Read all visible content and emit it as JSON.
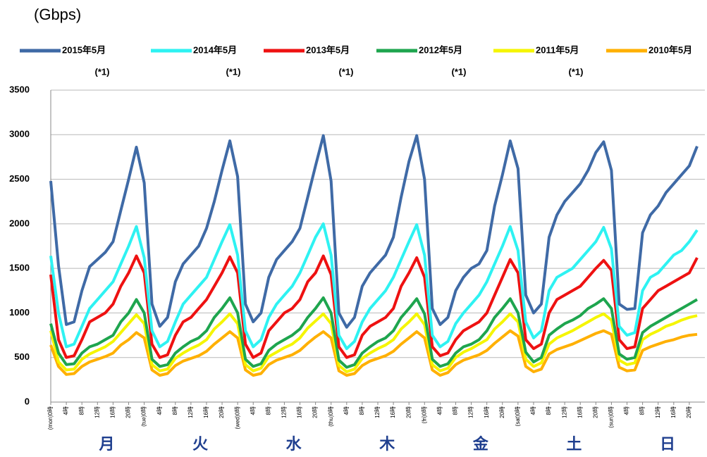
{
  "chart_data": {
    "type": "line",
    "title": "(Gbps)",
    "x": [
      0,
      2,
      4,
      6,
      8,
      10,
      12,
      14,
      16,
      18,
      20,
      22,
      24,
      26,
      28,
      30,
      32,
      34,
      36,
      38,
      40,
      42,
      44,
      46,
      48,
      50,
      52,
      54,
      56,
      58,
      60,
      62,
      64,
      66,
      68,
      70,
      72,
      74,
      76,
      78,
      80,
      82,
      84,
      86,
      88,
      90,
      92,
      94,
      96,
      98,
      100,
      102,
      104,
      106,
      108,
      110,
      112,
      114,
      116,
      118,
      120,
      122,
      124,
      126,
      128,
      130,
      132,
      134,
      136,
      138,
      140,
      142,
      144,
      146,
      148,
      150,
      152,
      154,
      156,
      158,
      160,
      162,
      164,
      166
    ],
    "xlim": [
      0,
      168
    ],
    "xticks": [
      {
        "value": 0,
        "label": "(mon)0時"
      },
      {
        "value": 4,
        "label": "4時"
      },
      {
        "value": 8,
        "label": "8時"
      },
      {
        "value": 12,
        "label": "12時"
      },
      {
        "value": 16,
        "label": "16時"
      },
      {
        "value": 20,
        "label": "20時"
      },
      {
        "value": 24,
        "label": "(tue)0時"
      },
      {
        "value": 28,
        "label": "4時"
      },
      {
        "value": 32,
        "label": "8時"
      },
      {
        "value": 36,
        "label": "12時"
      },
      {
        "value": 40,
        "label": "16時"
      },
      {
        "value": 44,
        "label": "20時"
      },
      {
        "value": 48,
        "label": "(wed)0時"
      },
      {
        "value": 52,
        "label": "4時"
      },
      {
        "value": 56,
        "label": "8時"
      },
      {
        "value": 60,
        "label": "12時"
      },
      {
        "value": 64,
        "label": "16時"
      },
      {
        "value": 68,
        "label": "20時"
      },
      {
        "value": 72,
        "label": "(thu)0時"
      },
      {
        "value": 76,
        "label": "4時"
      },
      {
        "value": 80,
        "label": "8時"
      },
      {
        "value": 84,
        "label": "12時"
      },
      {
        "value": 88,
        "label": "16時"
      },
      {
        "value": 92,
        "label": "20時"
      },
      {
        "value": 96,
        "label": "(fri)0時"
      },
      {
        "value": 100,
        "label": "4時"
      },
      {
        "value": 104,
        "label": "8時"
      },
      {
        "value": 108,
        "label": "12時"
      },
      {
        "value": 112,
        "label": "16時"
      },
      {
        "value": 116,
        "label": "20時"
      },
      {
        "value": 120,
        "label": "(sat)0時"
      },
      {
        "value": 124,
        "label": "4時"
      },
      {
        "value": 128,
        "label": "8時"
      },
      {
        "value": 132,
        "label": "12時"
      },
      {
        "value": 136,
        "label": "16時"
      },
      {
        "value": 140,
        "label": "20時"
      },
      {
        "value": 144,
        "label": "(sun)0時"
      },
      {
        "value": 148,
        "label": "4時"
      },
      {
        "value": 152,
        "label": "8時"
      },
      {
        "value": 156,
        "label": "12時"
      },
      {
        "value": 160,
        "label": "16時"
      },
      {
        "value": 164,
        "label": "20時"
      }
    ],
    "ylim": [
      0,
      3500
    ],
    "yticks": [
      0,
      500,
      1000,
      1500,
      2000,
      2500,
      3000,
      3500
    ],
    "grid": true,
    "day_labels": [
      "月",
      "火",
      "水",
      "木",
      "金",
      "土",
      "日"
    ],
    "annotations": [
      "(*1)",
      "(*1)",
      "(*1)",
      "(*1)",
      "(*1)"
    ],
    "series": [
      {
        "name": "2015年5月",
        "color": "#3f6aa6",
        "values": [
          2480,
          1530,
          870,
          900,
          1250,
          1520,
          1600,
          1680,
          1800,
          2150,
          2500,
          2860,
          2460,
          1100,
          850,
          950,
          1350,
          1550,
          1650,
          1750,
          1950,
          2250,
          2600,
          2930,
          2530,
          1100,
          900,
          1000,
          1400,
          1600,
          1700,
          1800,
          1950,
          2300,
          2650,
          2990,
          2480,
          1000,
          840,
          950,
          1300,
          1450,
          1550,
          1650,
          1850,
          2300,
          2700,
          2990,
          2500,
          1050,
          870,
          950,
          1250,
          1400,
          1500,
          1550,
          1700,
          2200,
          2550,
          2930,
          2620,
          1200,
          1000,
          1100,
          1850,
          2100,
          2250,
          2350,
          2450,
          2600,
          2800,
          2920,
          2600,
          1100,
          1040,
          1050,
          1900,
          2100,
          2200,
          2350,
          2450,
          2550,
          2650,
          2870
        ]
      },
      {
        "name": "2014年5月",
        "color": "#2ef2f2",
        "values": [
          1640,
          1000,
          620,
          650,
          850,
          1050,
          1150,
          1250,
          1350,
          1550,
          1750,
          1970,
          1620,
          800,
          620,
          680,
          900,
          1100,
          1200,
          1300,
          1400,
          1600,
          1800,
          1990,
          1650,
          800,
          620,
          700,
          950,
          1100,
          1200,
          1300,
          1450,
          1650,
          1850,
          2000,
          1650,
          750,
          600,
          680,
          900,
          1050,
          1150,
          1250,
          1400,
          1600,
          1800,
          1990,
          1650,
          750,
          620,
          680,
          880,
          1000,
          1100,
          1200,
          1350,
          1550,
          1750,
          1970,
          1700,
          900,
          720,
          800,
          1250,
          1400,
          1450,
          1500,
          1600,
          1700,
          1800,
          1960,
          1720,
          850,
          750,
          780,
          1250,
          1400,
          1450,
          1550,
          1650,
          1700,
          1800,
          1930
        ]
      },
      {
        "name": "2013年5月",
        "color": "#ee1111",
        "values": [
          1430,
          700,
          500,
          520,
          700,
          900,
          950,
          1000,
          1100,
          1300,
          1450,
          1640,
          1450,
          650,
          500,
          530,
          750,
          900,
          950,
          1050,
          1150,
          1300,
          1450,
          1630,
          1450,
          650,
          500,
          550,
          800,
          900,
          1000,
          1050,
          1150,
          1350,
          1450,
          1640,
          1430,
          620,
          500,
          530,
          750,
          850,
          900,
          950,
          1050,
          1300,
          1450,
          1620,
          1400,
          620,
          520,
          550,
          700,
          800,
          850,
          900,
          1000,
          1200,
          1400,
          1600,
          1450,
          700,
          600,
          650,
          1000,
          1150,
          1200,
          1250,
          1300,
          1400,
          1500,
          1590,
          1480,
          700,
          600,
          620,
          1050,
          1150,
          1250,
          1300,
          1350,
          1400,
          1450,
          1620
        ]
      },
      {
        "name": "2012年5月",
        "color": "#1ea54e",
        "values": [
          880,
          550,
          420,
          430,
          550,
          620,
          650,
          700,
          750,
          900,
          1000,
          1150,
          1000,
          480,
          400,
          420,
          550,
          620,
          680,
          720,
          800,
          950,
          1050,
          1170,
          1000,
          480,
          400,
          430,
          580,
          650,
          700,
          750,
          820,
          950,
          1050,
          1170,
          1000,
          470,
          390,
          420,
          550,
          620,
          680,
          720,
          800,
          950,
          1050,
          1160,
          990,
          480,
          400,
          430,
          550,
          620,
          650,
          700,
          800,
          950,
          1050,
          1160,
          1000,
          560,
          450,
          500,
          750,
          820,
          880,
          920,
          970,
          1050,
          1100,
          1160,
          1050,
          540,
          480,
          500,
          780,
          850,
          900,
          950,
          1000,
          1050,
          1100,
          1150
        ]
      },
      {
        "name": "2011年5月",
        "color": "#f5f500",
        "values": [
          800,
          450,
          360,
          370,
          480,
          540,
          580,
          620,
          680,
          780,
          880,
          980,
          880,
          420,
          350,
          370,
          490,
          550,
          600,
          640,
          700,
          820,
          900,
          990,
          880,
          420,
          350,
          380,
          510,
          560,
          610,
          650,
          720,
          830,
          910,
          990,
          880,
          410,
          340,
          370,
          490,
          550,
          600,
          640,
          700,
          820,
          900,
          990,
          870,
          420,
          350,
          380,
          500,
          560,
          600,
          650,
          700,
          820,
          900,
          990,
          900,
          480,
          400,
          440,
          650,
          720,
          760,
          800,
          850,
          900,
          950,
          990,
          920,
          470,
          420,
          440,
          700,
          760,
          800,
          850,
          880,
          920,
          950,
          970
        ]
      },
      {
        "name": "2010年5月",
        "color": "#ffb000",
        "values": [
          640,
          400,
          310,
          320,
          400,
          450,
          480,
          510,
          550,
          640,
          700,
          780,
          720,
          360,
          300,
          320,
          410,
          460,
          490,
          520,
          570,
          650,
          720,
          790,
          720,
          360,
          300,
          320,
          420,
          470,
          500,
          530,
          580,
          660,
          730,
          790,
          720,
          350,
          300,
          320,
          410,
          460,
          490,
          520,
          570,
          650,
          720,
          790,
          720,
          360,
          300,
          330,
          420,
          470,
          500,
          530,
          580,
          660,
          730,
          800,
          740,
          400,
          340,
          370,
          540,
          590,
          620,
          650,
          690,
          730,
          770,
          800,
          760,
          390,
          350,
          360,
          580,
          620,
          650,
          680,
          700,
          730,
          750,
          760
        ]
      }
    ]
  }
}
